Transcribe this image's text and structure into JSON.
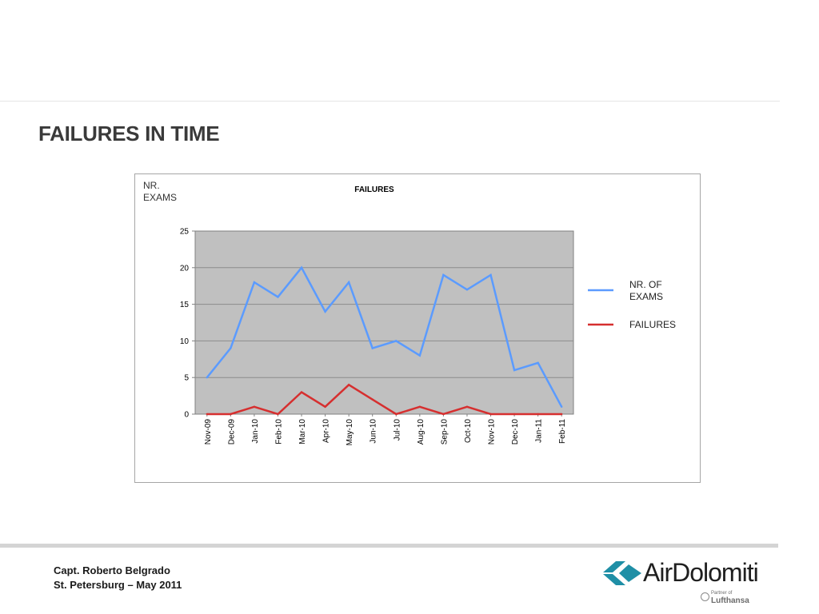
{
  "slide": {
    "title": "FAILURES IN TIME"
  },
  "footer": {
    "author": "Capt. Roberto Belgrado",
    "event": "St. Petersburg – May 2011",
    "logo_wordmark": "AirDolomiti",
    "partner_small": "Partner of",
    "partner_brand": "Lufthansa"
  },
  "colors": {
    "exams": "#5b9bff",
    "failures": "#d62f2f",
    "plot_bg": "#c0c0c0",
    "logo_teal": "#1f8fa6"
  },
  "chart_data": {
    "type": "line",
    "title": "FAILURES",
    "ylabel": "NR. EXAMS",
    "xlabel": "",
    "categories": [
      "Nov-09",
      "Dec-09",
      "Jan-10",
      "Feb-10",
      "Mar-10",
      "Apr-10",
      "May-10",
      "Jun-10",
      "Jul-10",
      "Aug-10",
      "Sep-10",
      "Oct-10",
      "Nov-10",
      "Dec-10",
      "Jan-11",
      "Feb-11"
    ],
    "series": [
      {
        "name": "NR. OF EXAMS",
        "color": "#5b9bff",
        "values": [
          5,
          9,
          18,
          16,
          20,
          14,
          18,
          9,
          10,
          8,
          19,
          17,
          19,
          6,
          7,
          1
        ]
      },
      {
        "name": "FAILURES",
        "color": "#d62f2f",
        "values": [
          0,
          0,
          1,
          0,
          3,
          1,
          4,
          2,
          0,
          1,
          0,
          1,
          0,
          0,
          0,
          0
        ]
      }
    ],
    "ylim": [
      0,
      25
    ],
    "yticks": [
      0,
      5,
      10,
      15,
      20,
      25
    ],
    "grid": true,
    "legend": "right"
  }
}
